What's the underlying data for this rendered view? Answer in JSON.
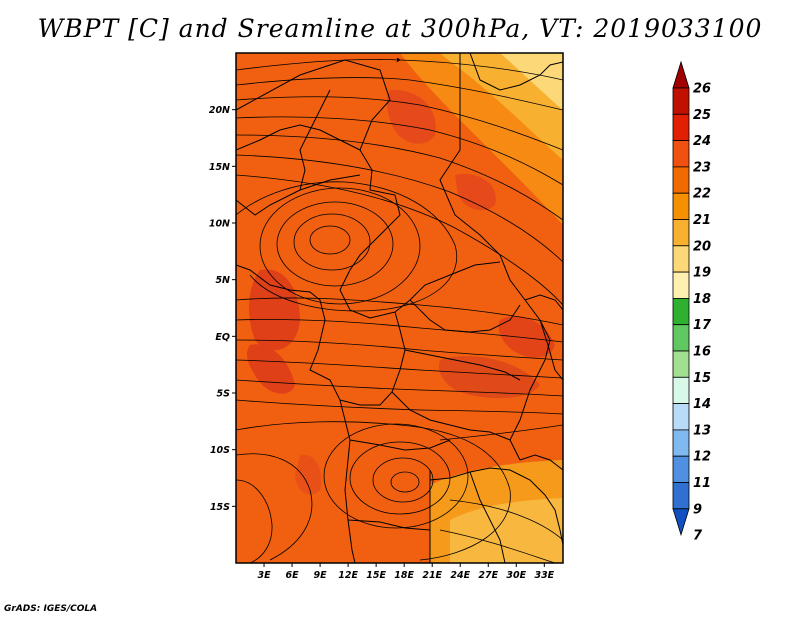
{
  "title": "WBPT [C] and Sreamline at 300hPa, VT: 2019033100",
  "footer": "GrADS: IGES/COLA",
  "map": {
    "lon_range": [
      0,
      35
    ],
    "lat_range": [
      -20,
      25
    ],
    "lat_ticks": [
      {
        "value": 20,
        "label": "20N"
      },
      {
        "value": 15,
        "label": "15N"
      },
      {
        "value": 10,
        "label": "10N"
      },
      {
        "value": 5,
        "label": "5N"
      },
      {
        "value": 0,
        "label": "EQ"
      },
      {
        "value": -5,
        "label": "5S"
      },
      {
        "value": -10,
        "label": "10S"
      },
      {
        "value": -15,
        "label": "15S"
      }
    ],
    "lon_ticks": [
      {
        "value": 3,
        "label": "3E"
      },
      {
        "value": 6,
        "label": "6E"
      },
      {
        "value": 9,
        "label": "9E"
      },
      {
        "value": 12,
        "label": "12E"
      },
      {
        "value": 15,
        "label": "15E"
      },
      {
        "value": 18,
        "label": "18E"
      },
      {
        "value": 21,
        "label": "21E"
      },
      {
        "value": 24,
        "label": "24E"
      },
      {
        "value": 27,
        "label": "27E"
      },
      {
        "value": 30,
        "label": "30E"
      },
      {
        "value": 33,
        "label": "33E"
      }
    ],
    "background_color": "#f06010"
  },
  "colorbar": {
    "levels": [
      "26",
      "25",
      "24",
      "23",
      "22",
      "21",
      "20",
      "19",
      "18",
      "17",
      "16",
      "15",
      "14",
      "13",
      "12",
      "11",
      "9",
      "7"
    ],
    "colors": [
      "#a00000",
      "#c01000",
      "#e02000",
      "#f05010",
      "#f06a00",
      "#f59000",
      "#f8b030",
      "#fcd878",
      "#fff0b0",
      "#2fb030",
      "#60c860",
      "#a0e090",
      "#d8f8e8",
      "#b8dcf8",
      "#80b8f0",
      "#5090e0",
      "#3070d0",
      "#1050c0"
    ]
  }
}
